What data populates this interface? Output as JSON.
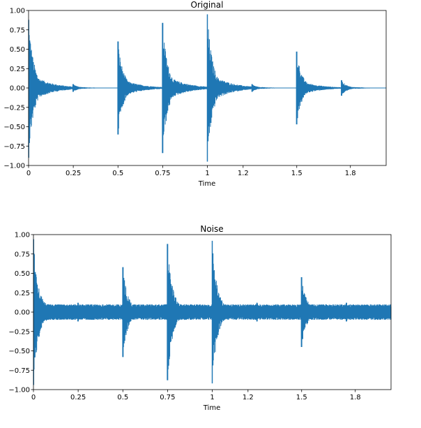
{
  "chart_data": [
    {
      "type": "line",
      "title": "Original",
      "xlabel": "Time",
      "ylabel": "",
      "xlim": [
        0,
        2.0
      ],
      "ylim": [
        -1.0,
        1.0
      ],
      "xticks": [
        0,
        0.25,
        0.5,
        0.75,
        1,
        1.2,
        1.5,
        1.8
      ],
      "xtick_labels": [
        "0",
        "0.25",
        "0.5",
        "0.75",
        "1",
        "1.2",
        "1.5",
        "1.8"
      ],
      "yticks": [
        1.0,
        0.75,
        0.5,
        0.25,
        0.0,
        -0.25,
        -0.5,
        -0.75,
        -1.0
      ],
      "ytick_labels": [
        "1.00",
        "0.75",
        "0.50",
        "0.25",
        "0.00",
        "−0.25",
        "−0.50",
        "−0.75",
        "−1.00"
      ],
      "color": "#1f77b4",
      "noise_floor": 0.0,
      "onsets": [
        {
          "t": 0.0,
          "peak_pos": 0.88,
          "peak_neg": -0.9
        },
        {
          "t": 0.25,
          "peak_pos": 0.05,
          "peak_neg": -0.05
        },
        {
          "t": 0.5,
          "peak_pos": 0.6,
          "peak_neg": -0.6
        },
        {
          "t": 0.75,
          "peak_pos": 0.84,
          "peak_neg": -0.84
        },
        {
          "t": 1.0,
          "peak_pos": 0.95,
          "peak_neg": -0.95
        },
        {
          "t": 1.25,
          "peak_pos": 0.05,
          "peak_neg": -0.05
        },
        {
          "t": 1.5,
          "peak_pos": 0.47,
          "peak_neg": -0.47
        },
        {
          "t": 1.75,
          "peak_pos": 0.1,
          "peak_neg": -0.1
        }
      ]
    },
    {
      "type": "line",
      "title": "Noise",
      "xlabel": "Time",
      "ylabel": "",
      "xlim": [
        0,
        2.0
      ],
      "ylim": [
        -1.0,
        1.0
      ],
      "xticks": [
        0,
        0.25,
        0.5,
        0.75,
        1,
        1.2,
        1.5,
        1.8
      ],
      "xtick_labels": [
        "0",
        "0.25",
        "0.5",
        "0.75",
        "1",
        "1.2",
        "1.5",
        "1.8"
      ],
      "yticks": [
        1.0,
        0.75,
        0.5,
        0.25,
        0.0,
        -0.25,
        -0.5,
        -0.75,
        -1.0
      ],
      "ytick_labels": [
        "1.00",
        "0.75",
        "0.50",
        "0.25",
        "0.00",
        "−0.25",
        "−0.50",
        "−0.75",
        "−1.00"
      ],
      "color": "#1f77b4",
      "noise_floor": 0.1,
      "onsets": [
        {
          "t": 0.0,
          "peak_pos": 0.94,
          "peak_neg": -0.94
        },
        {
          "t": 0.25,
          "peak_pos": 0.12,
          "peak_neg": -0.12
        },
        {
          "t": 0.5,
          "peak_pos": 0.58,
          "peak_neg": -0.58
        },
        {
          "t": 0.75,
          "peak_pos": 0.88,
          "peak_neg": -0.88
        },
        {
          "t": 1.0,
          "peak_pos": 0.92,
          "peak_neg": -0.92
        },
        {
          "t": 1.25,
          "peak_pos": 0.12,
          "peak_neg": -0.12
        },
        {
          "t": 1.5,
          "peak_pos": 0.45,
          "peak_neg": -0.45
        },
        {
          "t": 1.75,
          "peak_pos": 0.12,
          "peak_neg": -0.12
        }
      ]
    }
  ]
}
